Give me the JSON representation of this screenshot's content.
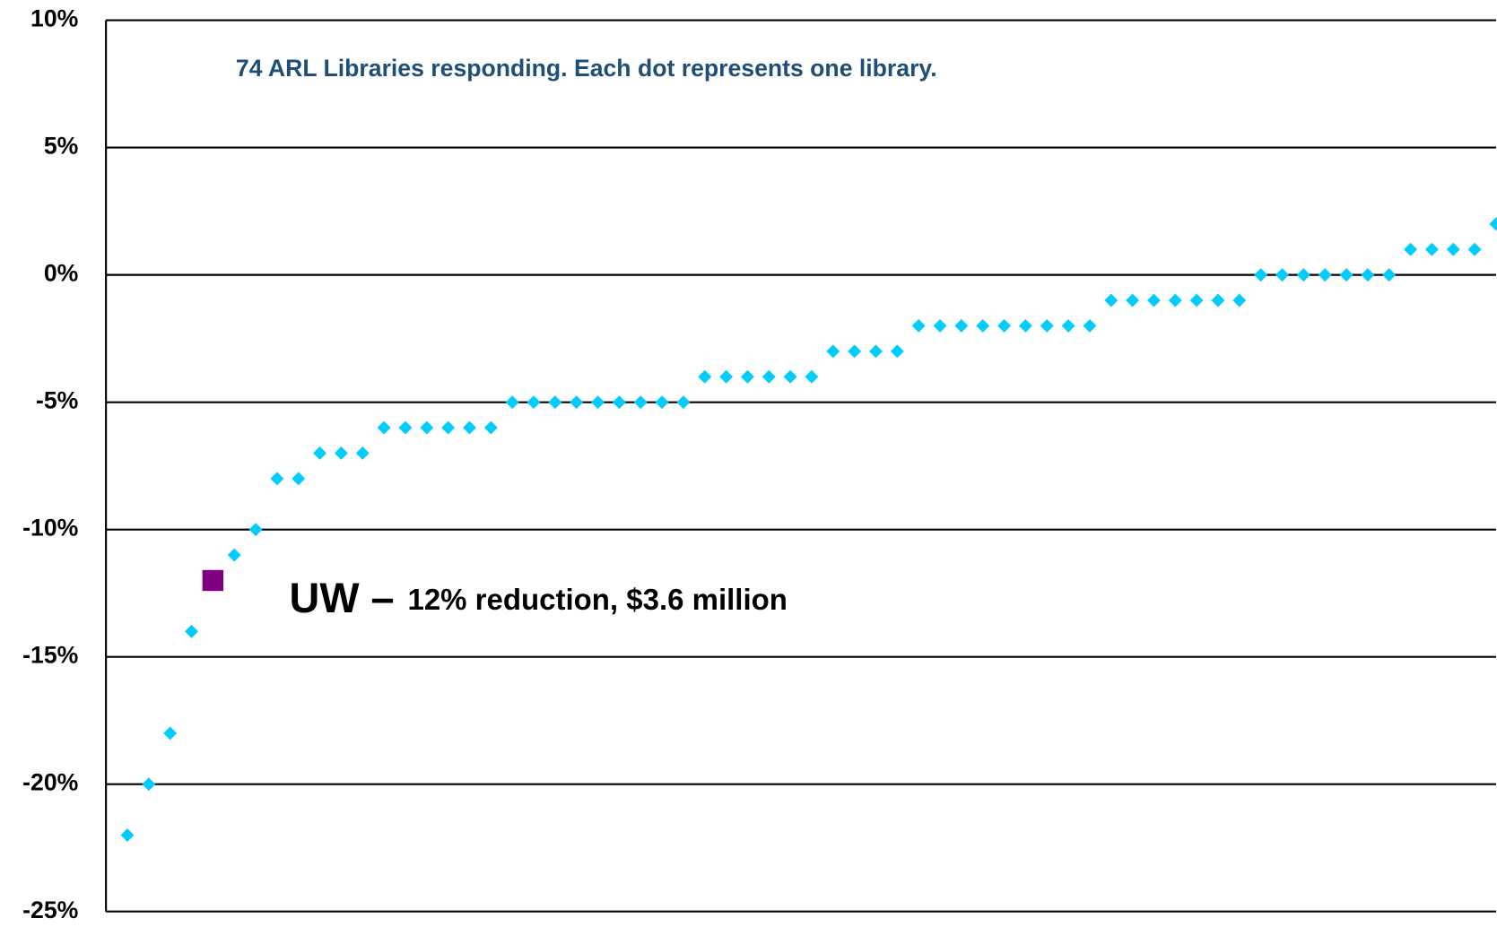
{
  "chart_data": {
    "type": "scatter",
    "ylim": [
      -25,
      10
    ],
    "yticks": [
      {
        "value": -25,
        "label": "-25%"
      },
      {
        "value": -20,
        "label": "-20%"
      },
      {
        "value": -15,
        "label": "-15%"
      },
      {
        "value": -10,
        "label": "-10%"
      },
      {
        "value": -5,
        "label": "-5%"
      },
      {
        "value": 0,
        "label": "0%"
      },
      {
        "value": 5,
        "label": "5%"
      },
      {
        "value": 10,
        "label": "10%"
      }
    ],
    "xlim": [
      0,
      65
    ],
    "grid": true,
    "annotations": [
      {
        "text": "74 ARL Libraries responding.  Each dot represents one library."
      },
      {
        "text": "UW –",
        "detail": "12% reduction, $3.6 million"
      }
    ],
    "series": [
      {
        "color": "#00ccff",
        "marker": "diamond",
        "x": [
          1,
          2,
          3,
          4,
          6,
          7,
          8,
          9,
          10,
          11,
          12,
          13,
          14,
          15,
          16,
          17,
          18,
          19,
          20,
          21,
          22,
          23,
          24,
          25,
          26,
          27,
          28,
          29,
          30,
          31,
          32,
          33,
          34,
          35,
          36,
          37,
          38,
          39,
          40,
          41,
          42,
          43,
          44,
          45,
          46,
          47,
          48,
          49,
          50,
          51,
          52,
          53,
          54,
          55,
          56,
          57,
          58,
          59,
          60,
          61,
          62,
          63,
          64,
          65
        ],
        "values": [
          -22,
          -20,
          -18,
          -14,
          -11,
          -10,
          -8,
          -8,
          -7,
          -7,
          -7,
          -6,
          -6,
          -6,
          -6,
          -6,
          -6,
          -5,
          -5,
          -5,
          -5,
          -5,
          -5,
          -5,
          -5,
          -5,
          -4,
          -4,
          -4,
          -4,
          -4,
          -4,
          -3,
          -3,
          -3,
          -3,
          -2,
          -2,
          -2,
          -2,
          -2,
          -2,
          -2,
          -2,
          -2,
          -1,
          -1,
          -1,
          -1,
          -1,
          -1,
          -1,
          0,
          0,
          0,
          0,
          0,
          0,
          0,
          1,
          1,
          1,
          1,
          2
        ]
      },
      {
        "color": "#800080",
        "marker": "square",
        "x": [
          5
        ],
        "values": [
          -12
        ]
      }
    ]
  }
}
